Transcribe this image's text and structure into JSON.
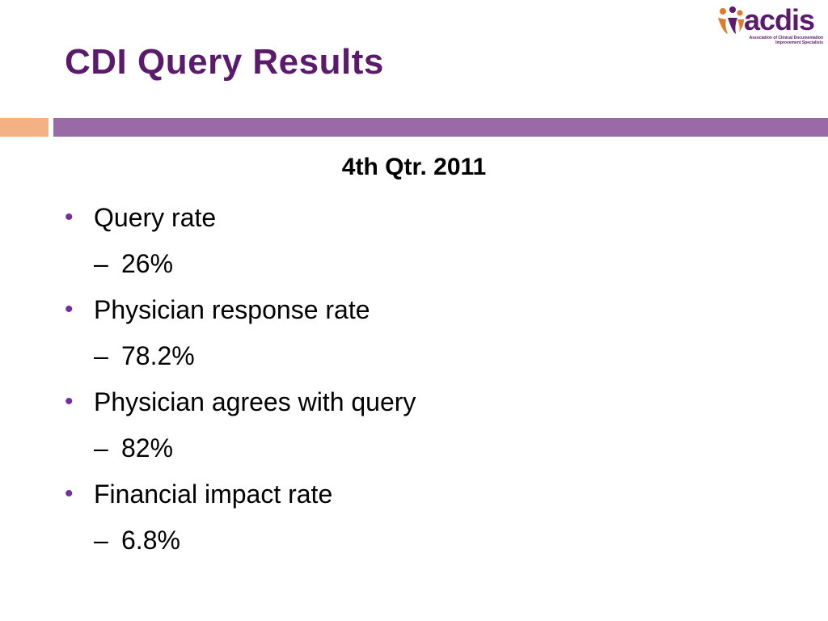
{
  "slide": {
    "title": "CDI Query Results",
    "subheading": "4th Qtr. 2011",
    "items": [
      {
        "label": "Query rate",
        "value": "26%"
      },
      {
        "label": "Physician response rate",
        "value": "78.2%"
      },
      {
        "label": "Physician agrees with query",
        "value": "82%"
      },
      {
        "label": "Financial impact rate",
        "value": "6.8%"
      }
    ]
  },
  "logo": {
    "wordmark": "acdis",
    "tagline": "Association of Clinical Documentation Improvement Specialists"
  },
  "colors": {
    "title": "#5b1a6b",
    "bullet": "#7030a0",
    "accent_orange": "#f4b183",
    "accent_purple": "#9a6aa6"
  }
}
